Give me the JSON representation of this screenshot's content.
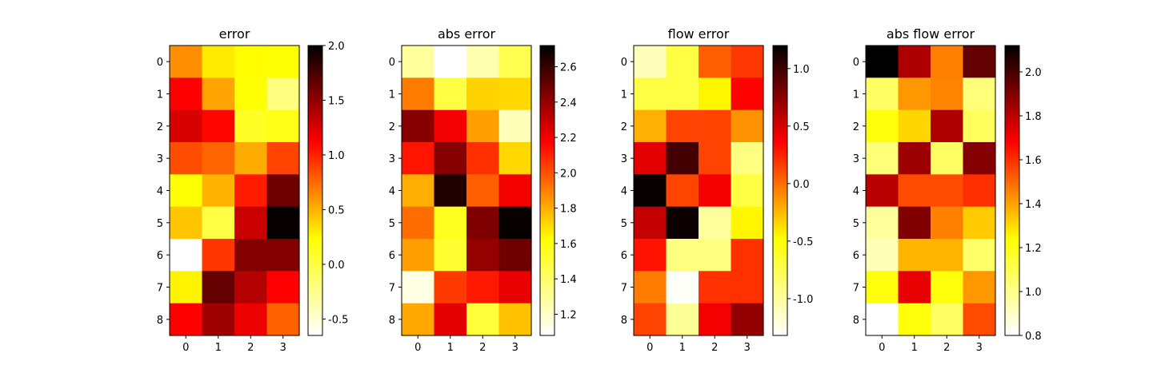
{
  "colormap": [
    "#ffffff",
    "#ffff00",
    "#ff0000",
    "#000000"
  ],
  "chart_data": [
    {
      "type": "heatmap",
      "title": "error",
      "x_ticks": [
        "0",
        "1",
        "2",
        "3"
      ],
      "y_ticks": [
        "0",
        "1",
        "2",
        "3",
        "4",
        "5",
        "6",
        "7",
        "8"
      ],
      "vmin": -0.65,
      "vmax": 2.0,
      "colorbar_ticks": [
        "-0.5",
        "0.0",
        "0.5",
        "1.0",
        "1.5",
        "2.0"
      ],
      "values": [
        [
          0.62,
          0.3,
          0.24,
          0.22
        ],
        [
          1.12,
          0.55,
          0.22,
          -0.2
        ],
        [
          1.25,
          1.1,
          0.1,
          0.15
        ],
        [
          0.85,
          0.77,
          0.52,
          0.88
        ],
        [
          0.22,
          0.5,
          1.02,
          1.62
        ],
        [
          0.43,
          0.0,
          1.3,
          1.98
        ],
        [
          -0.65,
          0.93,
          1.55,
          1.55
        ],
        [
          0.27,
          1.65,
          1.38,
          1.12
        ],
        [
          1.12,
          1.45,
          1.18,
          0.78
        ]
      ]
    },
    {
      "type": "heatmap",
      "title": "abs error",
      "x_ticks": [
        "0",
        "1",
        "2",
        "3"
      ],
      "y_ticks": [
        "0",
        "1",
        "2",
        "3",
        "4",
        "5",
        "6",
        "7",
        "8"
      ],
      "vmin": 1.08,
      "vmax": 2.72,
      "colorbar_ticks": [
        "1.2",
        "1.4",
        "1.6",
        "1.8",
        "2.0",
        "2.2",
        "2.4",
        "2.6"
      ],
      "values": [
        [
          1.29,
          1.08,
          1.25,
          1.45
        ],
        [
          1.91,
          1.48,
          1.72,
          1.71
        ],
        [
          2.43,
          2.2,
          1.83,
          1.23
        ],
        [
          2.13,
          2.43,
          2.07,
          1.71
        ],
        [
          1.8,
          2.65,
          1.97,
          2.2
        ],
        [
          1.94,
          1.56,
          2.45,
          2.7
        ],
        [
          1.83,
          1.52,
          2.4,
          2.48
        ],
        [
          1.14,
          2.05,
          2.12,
          2.22
        ],
        [
          1.81,
          2.23,
          1.5,
          1.76
        ]
      ]
    },
    {
      "type": "heatmap",
      "title": "flow error",
      "x_ticks": [
        "0",
        "1",
        "2",
        "3"
      ],
      "y_ticks": [
        "0",
        "1",
        "2",
        "3",
        "4",
        "5",
        "6",
        "7",
        "8"
      ],
      "vmin": -1.32,
      "vmax": 1.2,
      "colorbar_ticks": [
        "-1.0",
        "-0.5",
        "0.0",
        "0.5",
        "1.0"
      ],
      "values": [
        [
          -1.1,
          -0.7,
          0.05,
          0.18
        ],
        [
          -0.7,
          -0.7,
          -0.45,
          0.35
        ],
        [
          -0.22,
          0.14,
          0.14,
          -0.12
        ],
        [
          0.45,
          0.98,
          0.14,
          -0.9
        ],
        [
          1.18,
          0.14,
          0.4,
          -0.7
        ],
        [
          0.55,
          1.16,
          -1.0,
          -0.45
        ],
        [
          0.3,
          -0.9,
          -0.9,
          0.2
        ],
        [
          -0.05,
          -1.3,
          0.2,
          0.2
        ],
        [
          0.14,
          -0.98,
          0.4,
          0.72
        ]
      ]
    },
    {
      "type": "heatmap",
      "title": "abs flow error",
      "x_ticks": [
        "0",
        "1",
        "2",
        "3"
      ],
      "y_ticks": [
        "0",
        "1",
        "2",
        "3",
        "4",
        "5",
        "6",
        "7",
        "8"
      ],
      "vmin": 0.8,
      "vmax": 2.12,
      "colorbar_ticks": [
        "0.8",
        "1.0",
        "1.2",
        "1.4",
        "1.6",
        "1.8",
        "2.0"
      ],
      "values": [
        [
          2.12,
          1.82,
          1.46,
          1.95
        ],
        [
          1.07,
          1.42,
          1.45,
          1.03
        ],
        [
          1.22,
          1.31,
          1.82,
          1.08
        ],
        [
          1.03,
          1.85,
          1.07,
          1.89
        ],
        [
          1.8,
          1.55,
          1.55,
          1.6
        ],
        [
          0.97,
          1.9,
          1.46,
          1.33
        ],
        [
          0.92,
          1.37,
          1.37,
          1.06
        ],
        [
          1.22,
          1.72,
          1.22,
          1.42
        ],
        [
          0.8,
          1.22,
          1.07,
          1.55
        ]
      ]
    }
  ]
}
